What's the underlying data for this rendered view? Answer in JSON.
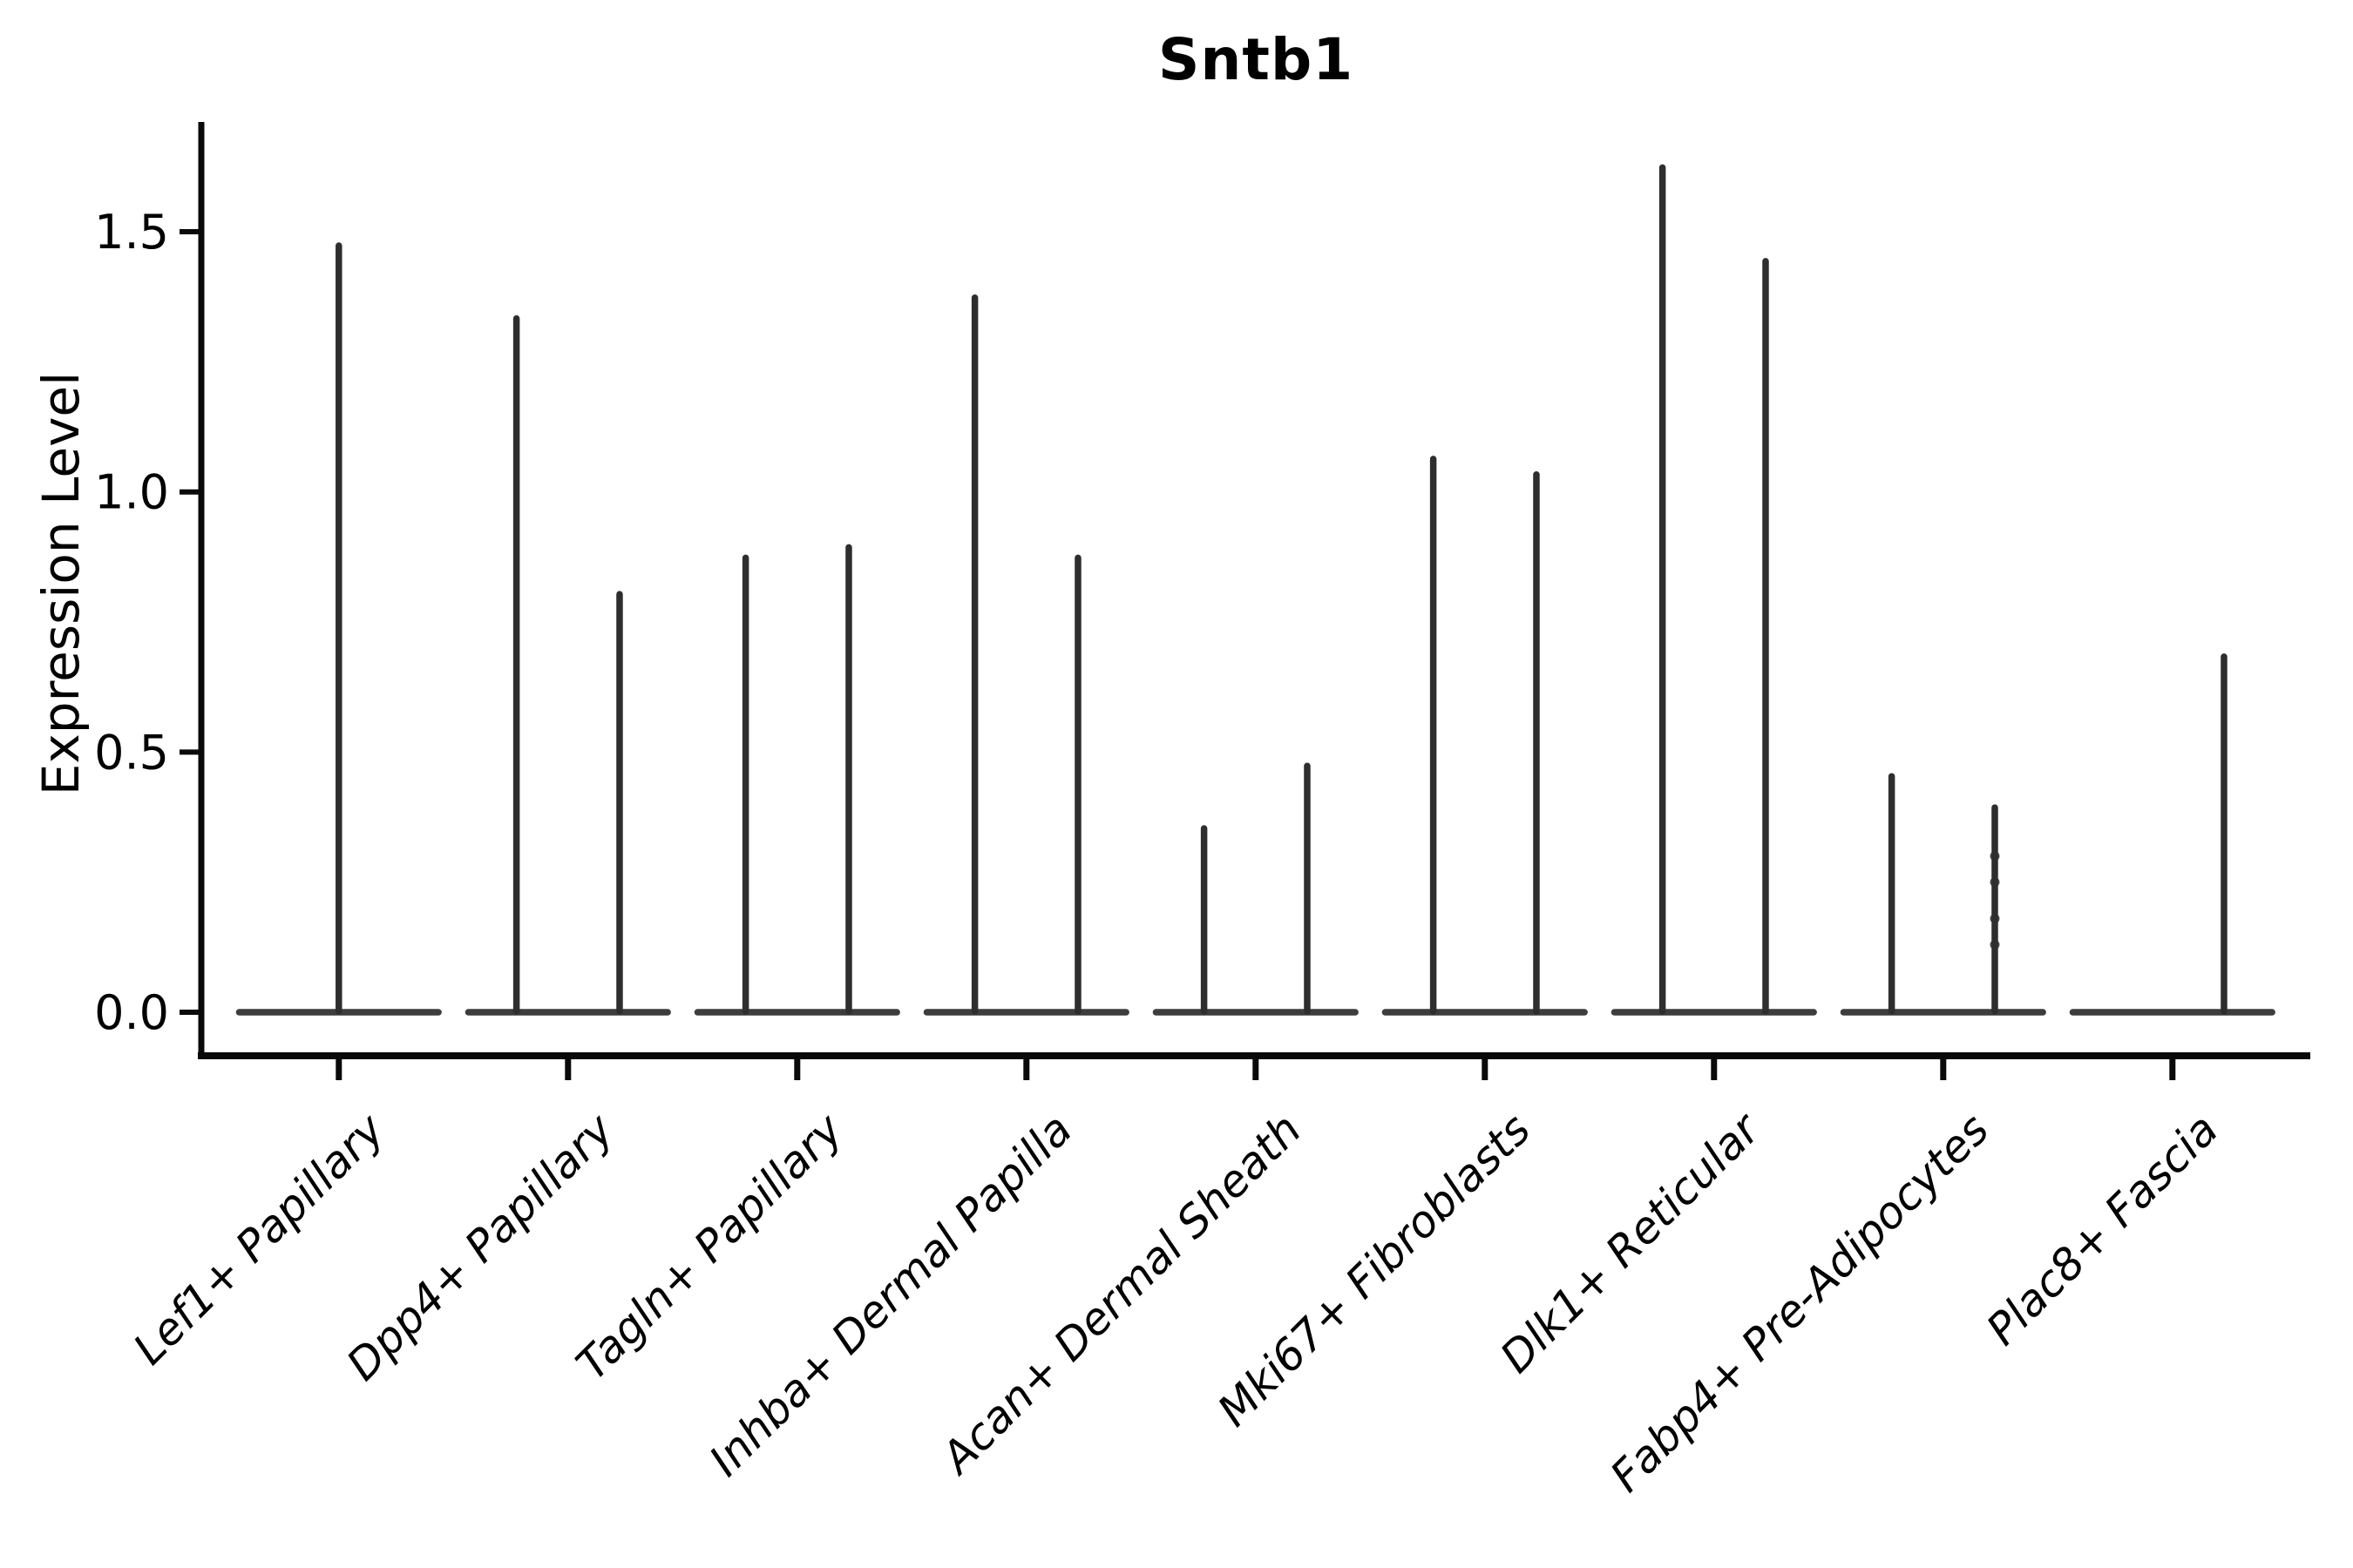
{
  "chart_data": {
    "type": "violin",
    "title": "Sntb1",
    "ylabel": "Expression Level",
    "xlabel": "",
    "ylim": [
      -0.08,
      1.71
    ],
    "grid": false,
    "legend": null,
    "yticks": [
      {
        "label": "0.0",
        "value": 0.0
      },
      {
        "label": "0.5",
        "value": 0.5
      },
      {
        "label": "1.0",
        "value": 1.0
      },
      {
        "label": "1.5",
        "value": 1.5
      }
    ],
    "categories": [
      "Lef1+ Papillary",
      "Dpp4+ Papillary",
      "Tagln+ Papillary",
      "Inhba+ Dermal Papilla",
      "Acan+ Dermal Sheath",
      "Mki67+ Fibroblasts",
      "Dlk1+ Reticular",
      "Fabp4+ Pre-Adipocytes",
      "Plac8+ Fascia"
    ],
    "violins": [
      {
        "category": "Lef1+ Papillary",
        "spikes": [
          {
            "pos": "center",
            "max": 1.48
          }
        ]
      },
      {
        "category": "Dpp4+ Papillary",
        "spikes": [
          {
            "pos": "left",
            "max": 1.34
          },
          {
            "pos": "right",
            "max": 0.81
          }
        ]
      },
      {
        "category": "Tagln+ Papillary",
        "spikes": [
          {
            "pos": "left",
            "max": 0.88
          },
          {
            "pos": "right",
            "max": 0.9
          }
        ]
      },
      {
        "category": "Inhba+ Dermal Papilla",
        "spikes": [
          {
            "pos": "left",
            "max": 1.38
          },
          {
            "pos": "right",
            "max": 0.88
          }
        ]
      },
      {
        "category": "Acan+ Dermal Sheath",
        "spikes": [
          {
            "pos": "left",
            "max": 0.36
          },
          {
            "pos": "right",
            "max": 0.48
          }
        ]
      },
      {
        "category": "Mki67+ Fibroblasts",
        "spikes": [
          {
            "pos": "left",
            "max": 1.07
          },
          {
            "pos": "right",
            "max": 1.04
          }
        ]
      },
      {
        "category": "Dlk1+ Reticular",
        "spikes": [
          {
            "pos": "left",
            "max": 1.63
          },
          {
            "pos": "right",
            "max": 1.45
          }
        ]
      },
      {
        "category": "Fabp4+ Pre-Adipocytes",
        "spikes": [
          {
            "pos": "left",
            "max": 0.46
          },
          {
            "pos": "right",
            "max": 0.4,
            "dots": [
              0.3,
              0.25,
              0.18,
              0.13
            ]
          }
        ]
      },
      {
        "category": "Plac8+ Fascia",
        "spikes": [
          {
            "pos": "right",
            "max": 0.69
          }
        ]
      }
    ],
    "violin_base_width": 0.9
  },
  "colors": {
    "violin_line": "#2e2e2e",
    "violin_baseline": "#3d3d3d",
    "axis": "#0a0a0a",
    "text": "#000000",
    "background": "#ffffff"
  }
}
